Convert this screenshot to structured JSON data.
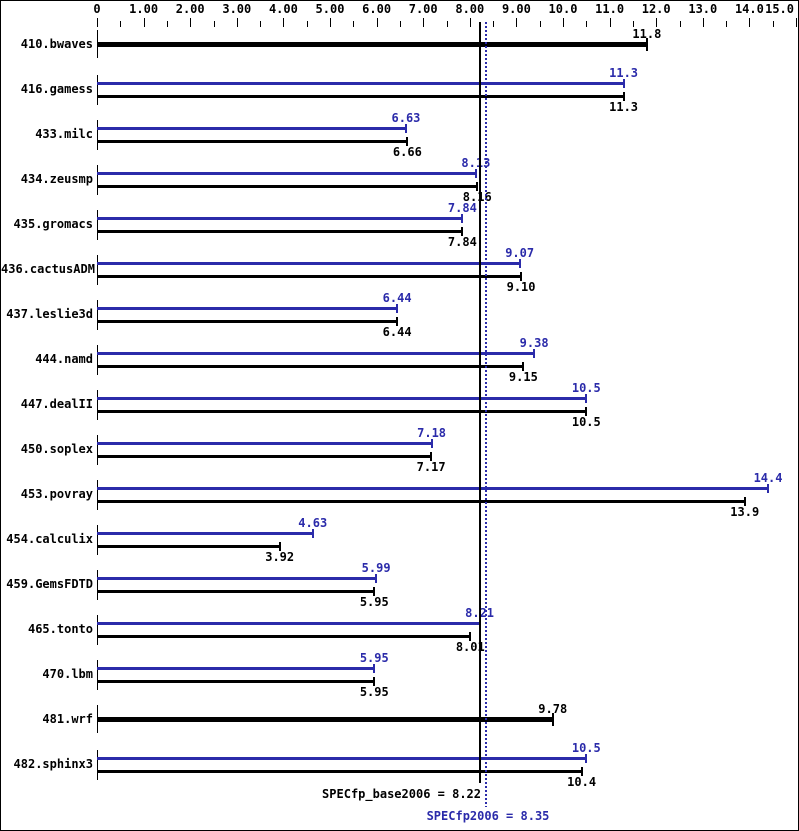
{
  "chart_data": {
    "type": "bar",
    "orientation": "horizontal",
    "title": "",
    "xlabel": "",
    "ylabel": "",
    "xlim": [
      0,
      15
    ],
    "grid": false,
    "legend_position": "none",
    "x_major_ticks": [
      {
        "value": 0,
        "label": "0"
      },
      {
        "value": 1,
        "label": "1.00"
      },
      {
        "value": 2,
        "label": "2.00"
      },
      {
        "value": 3,
        "label": "3.00"
      },
      {
        "value": 4,
        "label": "4.00"
      },
      {
        "value": 5,
        "label": "5.00"
      },
      {
        "value": 6,
        "label": "6.00"
      },
      {
        "value": 7,
        "label": "7.00"
      },
      {
        "value": 8,
        "label": "8.00"
      },
      {
        "value": 9,
        "label": "9.00"
      },
      {
        "value": 10,
        "label": "10.0"
      },
      {
        "value": 11,
        "label": "11.0"
      },
      {
        "value": 12,
        "label": "12.0"
      },
      {
        "value": 13,
        "label": "13.0"
      },
      {
        "value": 14,
        "label": "14.0"
      },
      {
        "value": 15,
        "label": "15.0"
      }
    ],
    "x_minor_tick_step": 0.5,
    "series_colors": {
      "peak": "#2b2baa",
      "base": "#000000"
    },
    "benchmarks": [
      {
        "name": "410.bwaves",
        "peak": null,
        "peak_label": "",
        "base": 11.8,
        "base_label": "11.8"
      },
      {
        "name": "416.gamess",
        "peak": 11.3,
        "peak_label": "11.3",
        "base": 11.3,
        "base_label": "11.3"
      },
      {
        "name": "433.milc",
        "peak": 6.63,
        "peak_label": "6.63",
        "base": 6.66,
        "base_label": "6.66"
      },
      {
        "name": "434.zeusmp",
        "peak": 8.13,
        "peak_label": "8.13",
        "base": 8.16,
        "base_label": "8.16"
      },
      {
        "name": "435.gromacs",
        "peak": 7.84,
        "peak_label": "7.84",
        "base": 7.84,
        "base_label": "7.84"
      },
      {
        "name": "436.cactusADM",
        "peak": 9.07,
        "peak_label": "9.07",
        "base": 9.1,
        "base_label": "9.10"
      },
      {
        "name": "437.leslie3d",
        "peak": 6.44,
        "peak_label": "6.44",
        "base": 6.44,
        "base_label": "6.44"
      },
      {
        "name": "444.namd",
        "peak": 9.38,
        "peak_label": "9.38",
        "base": 9.15,
        "base_label": "9.15"
      },
      {
        "name": "447.dealII",
        "peak": 10.5,
        "peak_label": "10.5",
        "base": 10.5,
        "base_label": "10.5"
      },
      {
        "name": "450.soplex",
        "peak": 7.18,
        "peak_label": "7.18",
        "base": 7.17,
        "base_label": "7.17"
      },
      {
        "name": "453.povray",
        "peak": 14.4,
        "peak_label": "14.4",
        "base": 13.9,
        "base_label": "13.9"
      },
      {
        "name": "454.calculix",
        "peak": 4.63,
        "peak_label": "4.63",
        "base": 3.92,
        "base_label": "3.92"
      },
      {
        "name": "459.GemsFDTD",
        "peak": 5.99,
        "peak_label": "5.99",
        "base": 5.95,
        "base_label": "5.95"
      },
      {
        "name": "465.tonto",
        "peak": 8.21,
        "peak_label": "8.21",
        "base": 8.01,
        "base_label": "8.01"
      },
      {
        "name": "470.lbm",
        "peak": 5.95,
        "peak_label": "5.95",
        "base": 5.95,
        "base_label": "5.95"
      },
      {
        "name": "481.wrf",
        "peak": null,
        "peak_label": "",
        "base": 9.78,
        "base_label": "9.78"
      },
      {
        "name": "482.sphinx3",
        "peak": 10.5,
        "peak_label": "10.5",
        "base": 10.4,
        "base_label": "10.4"
      }
    ],
    "reference_lines": [
      {
        "name": "SPECfp_base2006",
        "value": 8.22,
        "style": "solid",
        "color": "#000000"
      },
      {
        "name": "SPECfp2006",
        "value": 8.35,
        "style": "dotted",
        "color": "#2b2baa"
      }
    ],
    "footer": {
      "base_summary": "SPECfp_base2006 = 8.22",
      "peak_summary": "SPECfp2006 = 8.35"
    }
  }
}
